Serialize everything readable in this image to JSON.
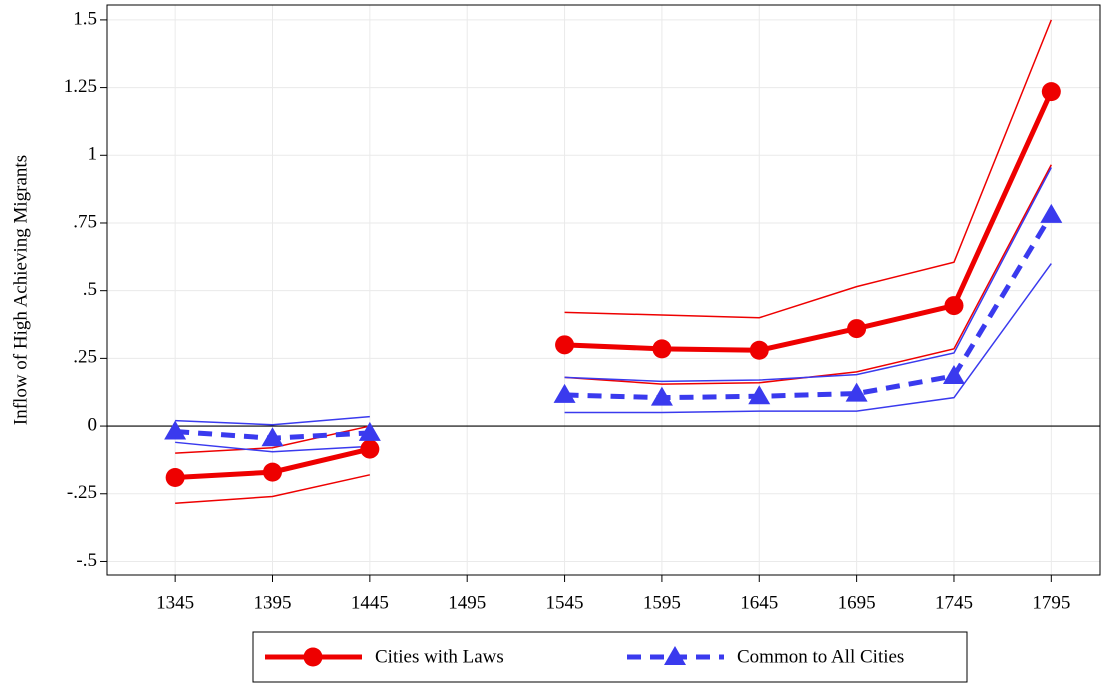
{
  "chart_data": {
    "type": "line",
    "y_label": "Inflow of High Achieving Migrants",
    "x": [
      1345,
      1395,
      1445,
      1495,
      1545,
      1595,
      1645,
      1695,
      1745,
      1795
    ],
    "xlim": [
      1310,
      1820
    ],
    "xticks": [
      1345,
      1395,
      1445,
      1495,
      1545,
      1595,
      1645,
      1695,
      1745,
      1795
    ],
    "ylim": [
      -0.55,
      1.555
    ],
    "yticks": [
      {
        "value": -0.5,
        "label": "-.5"
      },
      {
        "value": -0.25,
        "label": "-.25"
      },
      0,
      {
        "value": 0.25,
        "label": ".25"
      },
      {
        "value": 0.5,
        "label": ".5"
      },
      {
        "value": 0.75,
        "label": ".75"
      },
      1,
      1.25,
      1.5
    ],
    "grid": true,
    "zero_line": true,
    "series": [
      {
        "color": "#ee0000",
        "linewidth": 1.5,
        "style": "solid",
        "values": [
          -0.1,
          -0.08,
          0.0,
          null,
          0.42,
          0.41,
          0.4,
          0.515,
          0.605,
          1.5
        ]
      },
      {
        "color": "#ee0000",
        "linewidth": 1.5,
        "style": "solid",
        "values": [
          -0.285,
          -0.26,
          -0.18,
          null,
          0.18,
          0.155,
          0.16,
          0.2,
          0.285,
          0.965
        ]
      },
      {
        "color": "#3a3aee",
        "linewidth": 1.5,
        "style": "solid",
        "values": [
          0.02,
          0.005,
          0.035,
          null,
          0.18,
          0.165,
          0.17,
          0.19,
          0.27,
          0.955
        ]
      },
      {
        "color": "#3a3aee",
        "linewidth": 1.5,
        "style": "solid",
        "values": [
          -0.06,
          -0.095,
          -0.075,
          null,
          0.05,
          0.05,
          0.055,
          0.055,
          0.105,
          0.6
        ]
      },
      {
        "name": "Cities with Laws",
        "color": "#ee0000",
        "linewidth": 5,
        "style": "solid",
        "marker": "circle",
        "values": [
          -0.19,
          -0.17,
          -0.085,
          null,
          0.3,
          0.285,
          0.28,
          0.36,
          0.445,
          1.235
        ]
      },
      {
        "name": "Common to All Cities",
        "color": "#3a3aee",
        "linewidth": 5,
        "style": "dashed",
        "marker": "triangle",
        "values": [
          -0.02,
          -0.045,
          -0.025,
          null,
          0.115,
          0.105,
          0.11,
          0.12,
          0.185,
          0.78
        ]
      }
    ],
    "legend": "bottom"
  }
}
